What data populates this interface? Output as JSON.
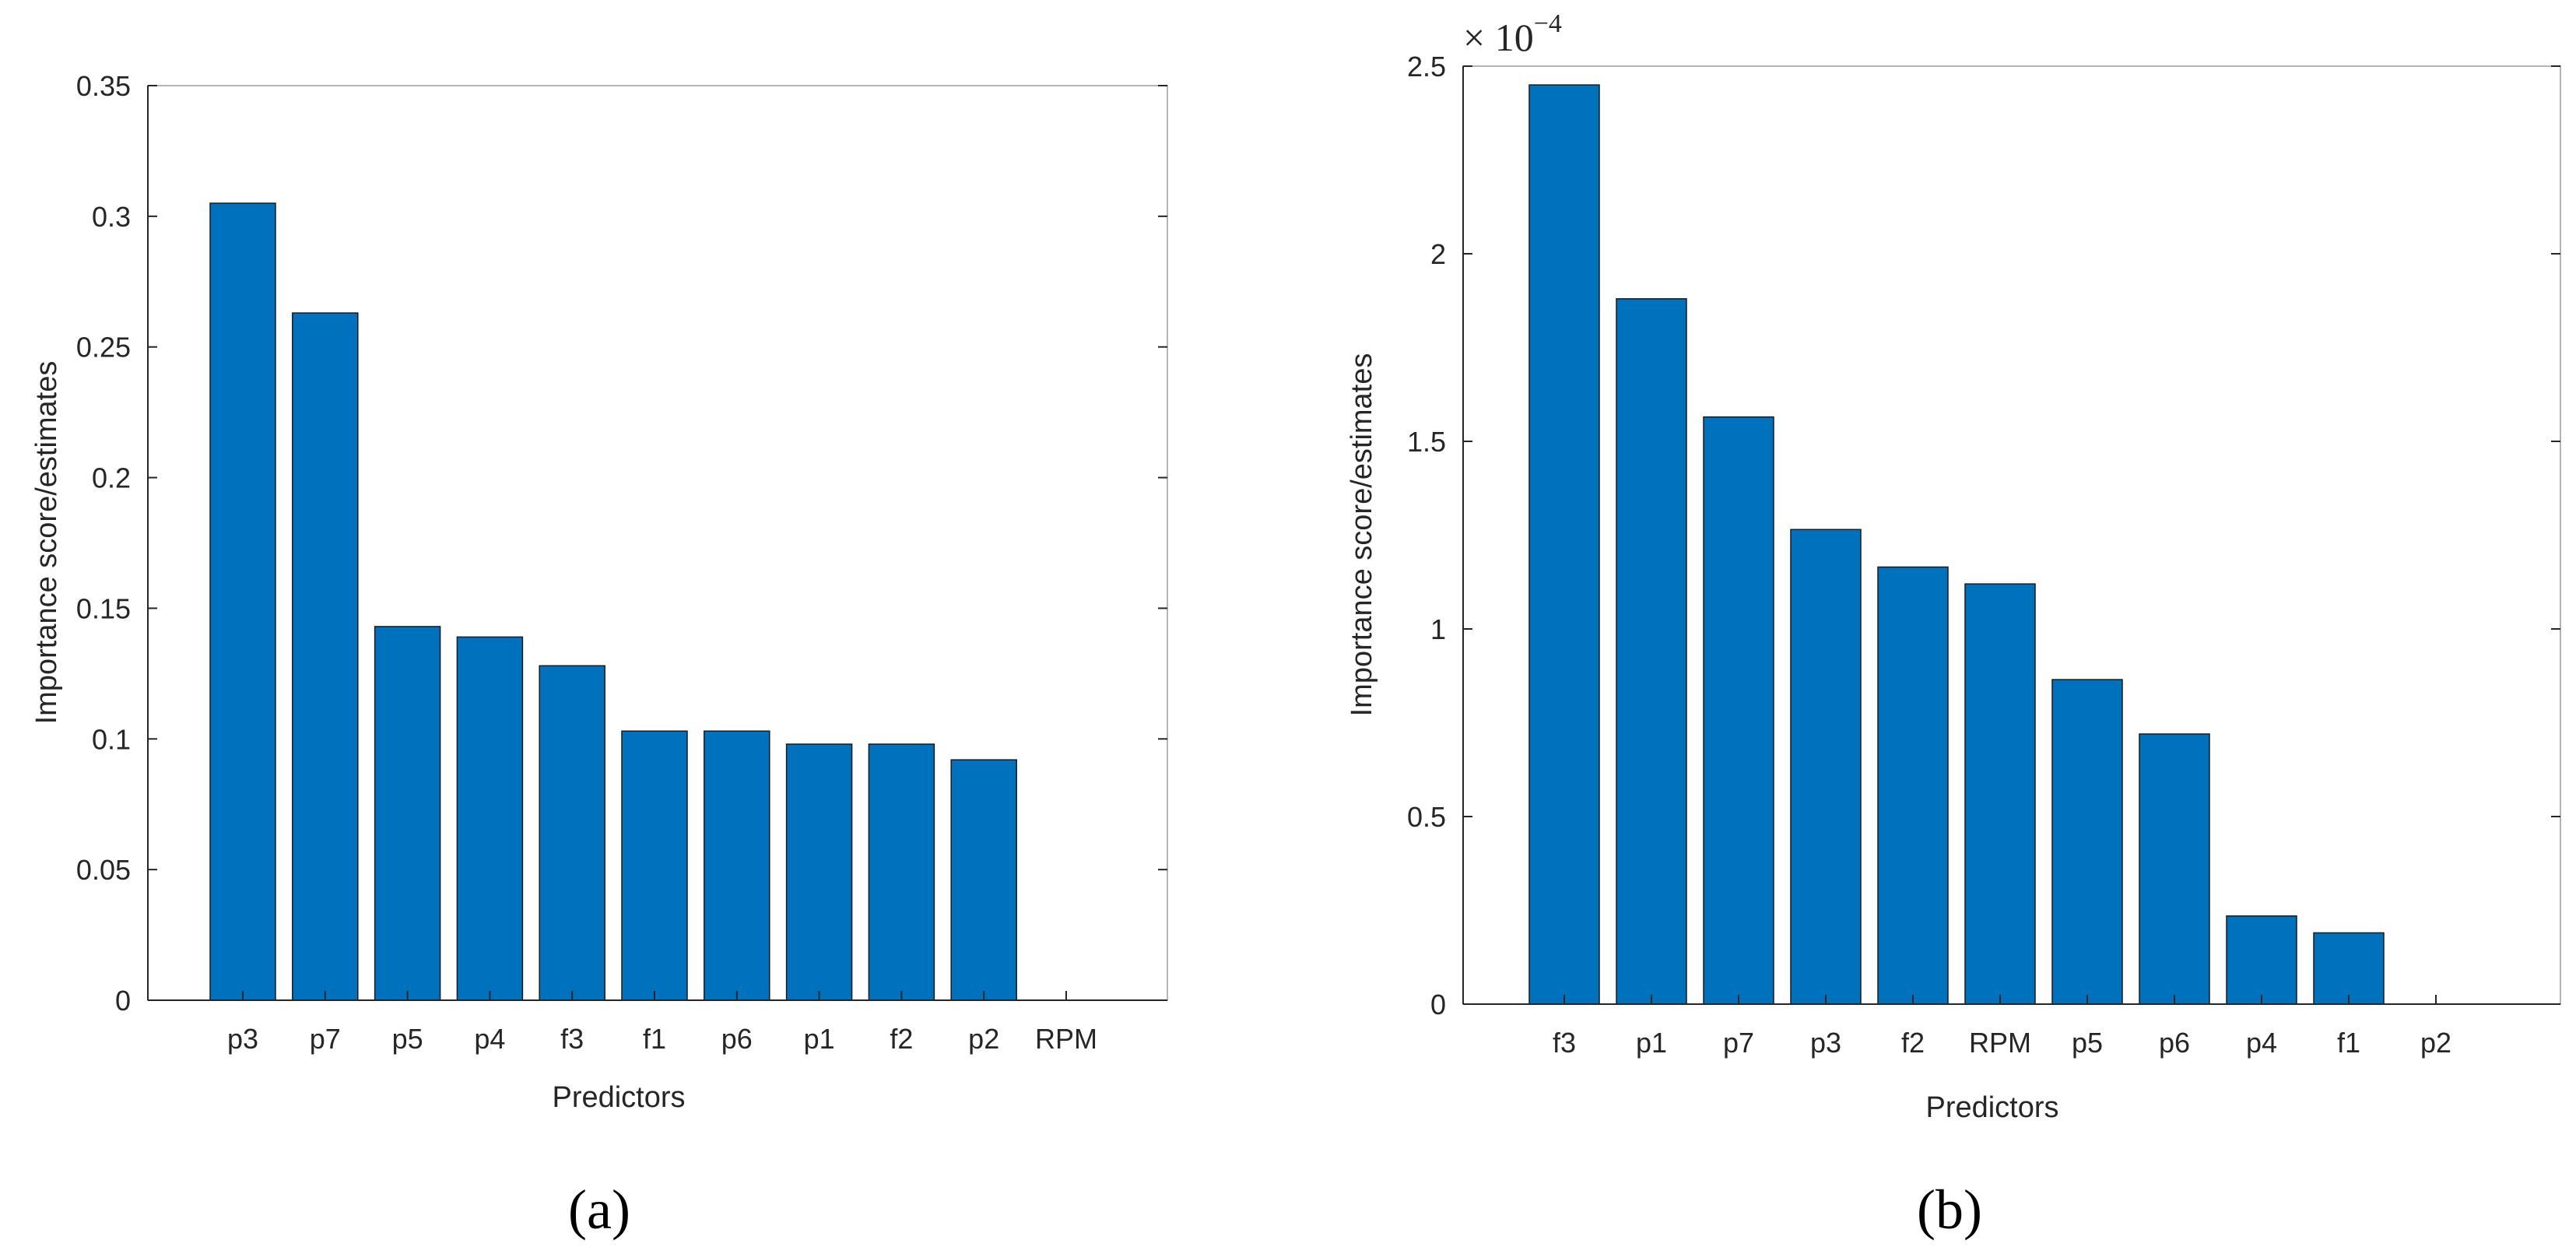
{
  "chart_data": [
    {
      "type": "bar",
      "panel_label": "(a)",
      "xlabel": "Predictors",
      "ylabel": "Importance score/estimates",
      "categories": [
        "p3",
        "p7",
        "p5",
        "p4",
        "f3",
        "f1",
        "p6",
        "p1",
        "f2",
        "p2",
        "RPM"
      ],
      "values": [
        0.305,
        0.263,
        0.143,
        0.139,
        0.128,
        0.103,
        0.103,
        0.098,
        0.098,
        0.092,
        0
      ],
      "ylim": [
        0,
        0.35
      ],
      "yticks": [
        0,
        0.05,
        0.1,
        0.15,
        0.2,
        0.25,
        0.3,
        0.35
      ],
      "ytick_labels": [
        "0",
        "0.05",
        "0.1",
        "0.15",
        "0.2",
        "0.25",
        "0.3",
        "0.35"
      ],
      "bar_color": "#0072bd"
    },
    {
      "type": "bar",
      "panel_label": "(b)",
      "xlabel": "Predictors",
      "ylabel": "Importance score/estimates",
      "scale_base": "× 10",
      "scale_exponent": "−4",
      "categories": [
        "f3",
        "p1",
        "p7",
        "p3",
        "f2",
        "RPM",
        "p5",
        "p6",
        "p4",
        "f1",
        "p2"
      ],
      "values": [
        2.45,
        1.88,
        1.565,
        1.265,
        1.165,
        1.12,
        0.865,
        0.72,
        0.235,
        0.19,
        0
      ],
      "ylim": [
        0,
        2.5
      ],
      "yticks": [
        0,
        0.5,
        1,
        1.5,
        2,
        2.5
      ],
      "ytick_labels": [
        "0",
        "0.5",
        "1",
        "1.5",
        "2",
        "2.5"
      ],
      "bar_color": "#0072bd"
    }
  ]
}
